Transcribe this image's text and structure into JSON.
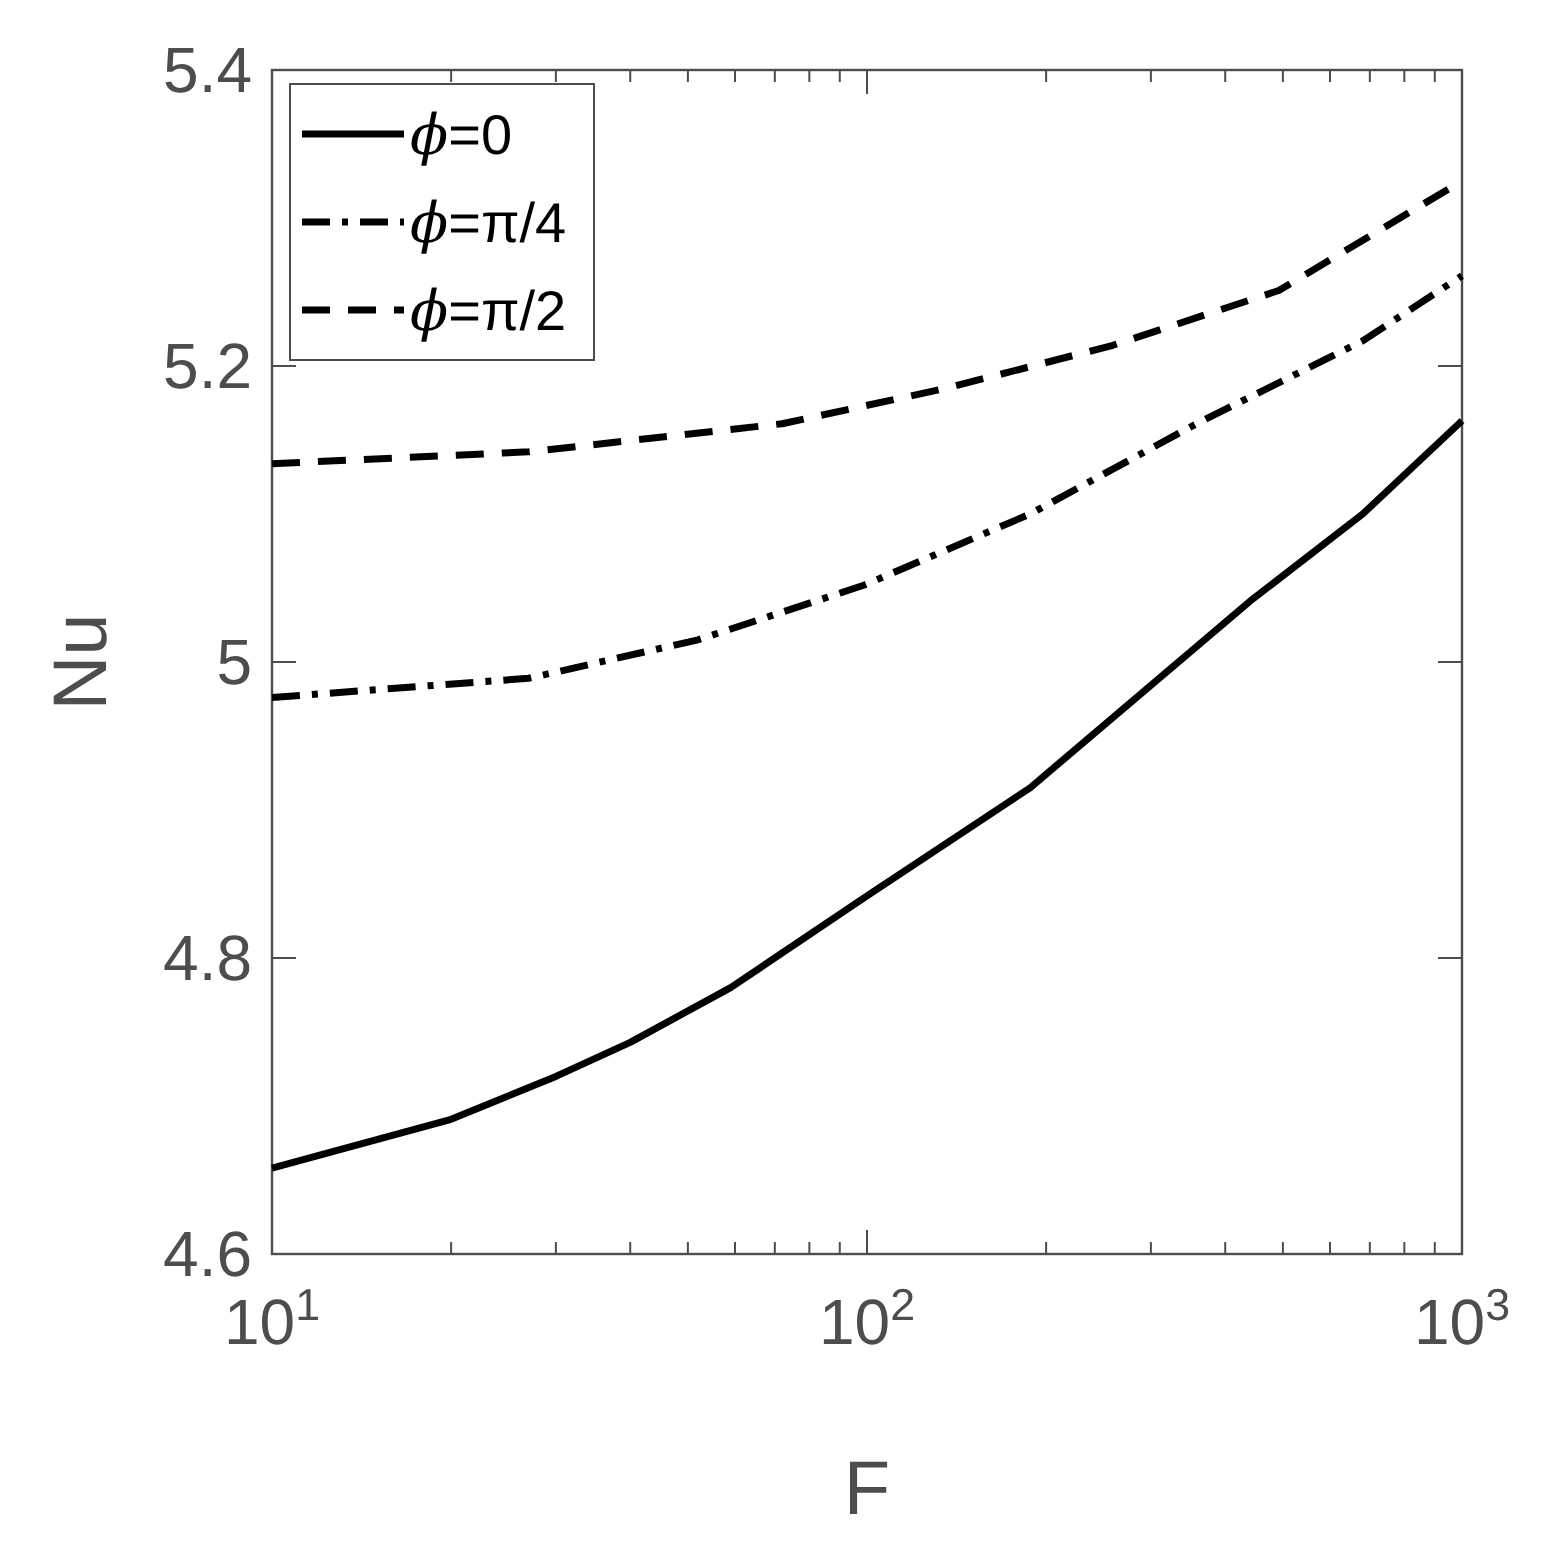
{
  "chart_data": {
    "type": "line",
    "xlabel": "F",
    "ylabel": "Nu",
    "log": "x",
    "grid": false,
    "legend": "top left",
    "marker": "none",
    "xlim": [
      10,
      1000
    ],
    "ylim": [
      4.6,
      5.4
    ],
    "xticks": [
      {
        "value": 10,
        "label": "10$^{1}$"
      },
      {
        "value": 20,
        "label": null
      },
      {
        "value": 30,
        "label": null
      },
      {
        "value": 40,
        "label": null
      },
      {
        "value": 50,
        "label": null
      },
      {
        "value": 60,
        "label": null
      },
      {
        "value": 70,
        "label": null
      },
      {
        "value": 80,
        "label": null
      },
      {
        "value": 90,
        "label": null
      },
      {
        "value": 100,
        "label": "10$^{2}$"
      },
      {
        "value": 200,
        "label": null
      },
      {
        "value": 300,
        "label": null
      },
      {
        "value": 400,
        "label": null
      },
      {
        "value": 500,
        "label": null
      },
      {
        "value": 600,
        "label": null
      },
      {
        "value": 700,
        "label": null
      },
      {
        "value": 800,
        "label": null
      },
      {
        "value": 900,
        "label": null
      },
      {
        "value": 1000,
        "label": "10$^{3}$"
      }
    ],
    "yticks": [
      4.6,
      4.8,
      {
        "value": 5,
        "label": "5"
      },
      5.2,
      5.4
    ],
    "series": [
      {
        "name": "ϕ=0",
        "color": "#000000",
        "line_style": "solid",
        "x": [
          10,
          20,
          30,
          40,
          59,
          100,
          188,
          440,
          681,
          1000
        ],
        "values": [
          4.658,
          4.691,
          4.72,
          4.743,
          4.78,
          4.842,
          4.915,
          5.041,
          5.1,
          5.163
        ]
      },
      {
        "name": "ϕ=π/4",
        "color": "#000000",
        "line_style": "dashdot",
        "x": [
          10,
          27,
          52,
          99,
          188,
          358,
          681,
          1000
        ],
        "values": [
          4.976,
          4.989,
          5.015,
          5.052,
          5.1,
          5.161,
          5.217,
          5.261
        ]
      },
      {
        "name": "ϕ=π/2",
        "color": "#000000",
        "line_style": "dashed",
        "x": [
          10,
          27,
          72,
          136,
          259,
          492,
          1000
        ],
        "values": [
          5.134,
          5.142,
          5.161,
          5.185,
          5.214,
          5.251,
          5.325
        ]
      }
    ]
  }
}
